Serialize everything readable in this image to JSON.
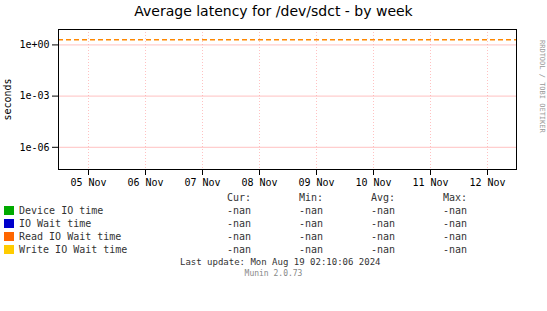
{
  "chart_data": {
    "type": "line",
    "title": "Average latency for /dev/sdct - by week",
    "y_label": "seconds",
    "categories": [
      "05 Nov",
      "06 Nov",
      "07 Nov",
      "08 Nov",
      "09 Nov",
      "10 Nov",
      "11 Nov",
      "12 Nov"
    ],
    "series": [
      {
        "name": "Device IO time",
        "color": "#00aa00",
        "values": [
          null,
          null,
          null,
          null,
          null,
          null,
          null,
          null
        ],
        "stats": [
          "-nan",
          "-nan",
          "-nan",
          "-nan"
        ]
      },
      {
        "name": "IO Wait time",
        "color": "#0000cc",
        "values": [
          null,
          null,
          null,
          null,
          null,
          null,
          null,
          null
        ],
        "stats": [
          "-nan",
          "-nan",
          "-nan",
          "-nan"
        ]
      },
      {
        "name": "Read IO Wait time",
        "color": "#ff6600",
        "values": [
          null,
          null,
          null,
          null,
          null,
          null,
          null,
          null
        ],
        "stats": [
          "-nan",
          "-nan",
          "-nan",
          "-nan"
        ]
      },
      {
        "name": "Write IO Wait time",
        "color": "#ffcc00",
        "values": [
          null,
          null,
          null,
          null,
          null,
          null,
          null,
          null
        ],
        "stats": [
          "-nan",
          "-nan",
          "-nan",
          "-nan"
        ]
      }
    ],
    "stats_headers": [
      "Cur:",
      "Min:",
      "Avg:",
      "Max:"
    ],
    "log": "y",
    "ylim": [
      5e-08,
      8
    ],
    "yticks": [
      {
        "value": 1.0,
        "label": "1e+00"
      },
      {
        "value": 0.001,
        "label": "1e-03"
      },
      {
        "value": 1e-06,
        "label": "1e-06"
      }
    ],
    "grid": true,
    "reference_lines": [
      {
        "y": 2.0,
        "color": "#ff8800",
        "line_style": "dashed"
      }
    ],
    "side_text": "RRDTOOL / TOBI OETIKER",
    "footer": "Last update: Mon Aug 19 02:10:06 2024",
    "caption": "Munin 2.0.73"
  }
}
